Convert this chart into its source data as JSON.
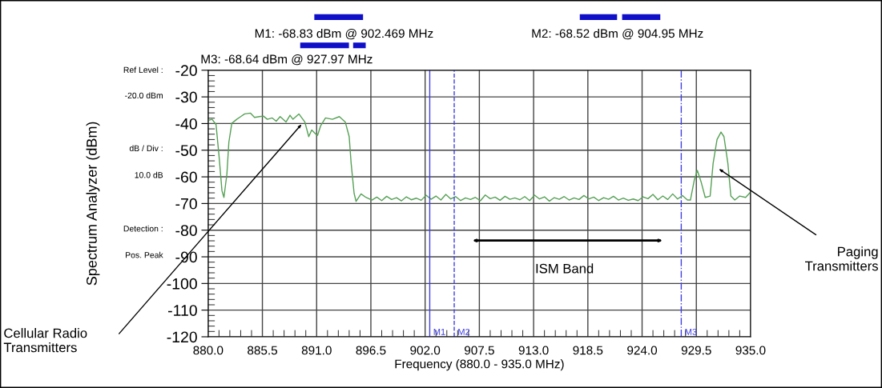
{
  "chart_data": {
    "type": "line",
    "xlabel": "Frequency (880.0 - 935.0 MHz)",
    "ylabel": "Spectrum Analyzer (dBm)",
    "annotations": [
      "M1: -68.83 dBm @ 902.469 MHz",
      "M2: -68.52 dBm @ 904.95 MHz",
      "M3: -68.64 dBm @ 927.97 MHz",
      "Ref Level :",
      "-20.0 dBm",
      "dB / Div :",
      "10.0 dB",
      "Detection :",
      "Pos. Peak",
      "Cellular Radio\nTransmitters",
      "Paging\nTransmitters",
      "ISM Band"
    ],
    "ref_lines": [
      {
        "axis": "x",
        "value": 902.469,
        "label": "M1",
        "color": "#4040e0",
        "line_style": "solid"
      },
      {
        "axis": "x",
        "value": 904.95,
        "label": "M2",
        "color": "#4040e0",
        "line_style": "dashed"
      },
      {
        "axis": "x",
        "value": 927.97,
        "label": "M3",
        "color": "#4040e0",
        "line_style": "dashdot"
      }
    ],
    "series": [
      {
        "color": "#55a055",
        "x": [
          880.1,
          880.4,
          880.8,
          881.1,
          881.4,
          881.6,
          881.9,
          882.1,
          882.4,
          882.9,
          883.3,
          883.7,
          884.3,
          884.7,
          885.2,
          885.6,
          886.0,
          886.5,
          886.9,
          887.3,
          887.9,
          888.3,
          888.6,
          889.2,
          889.8,
          890.2,
          890.5,
          890.9,
          891.1,
          891.4,
          891.9,
          892.6,
          893.3,
          893.9,
          894.3,
          894.5,
          894.8,
          895.0,
          895.5,
          896.0,
          896.6,
          897.1,
          897.6,
          898.1,
          898.6,
          899.1,
          899.6,
          900.1,
          900.6,
          901.1,
          901.6,
          902.1,
          902.6,
          903.1,
          903.6,
          904.1,
          904.6,
          905.1,
          905.6,
          906.1,
          906.6,
          907.1,
          907.6,
          908.1,
          908.6,
          909.1,
          909.6,
          910.1,
          910.6,
          911.1,
          911.6,
          912.1,
          912.6,
          913.1,
          913.6,
          914.1,
          914.6,
          915.1,
          915.6,
          916.1,
          916.6,
          917.1,
          917.6,
          918.1,
          918.6,
          919.1,
          919.6,
          920.1,
          920.6,
          921.1,
          921.6,
          922.1,
          922.6,
          923.1,
          923.6,
          924.1,
          924.6,
          925.1,
          925.6,
          926.1,
          926.6,
          927.1,
          927.6,
          928.1,
          928.6,
          928.9,
          929.3,
          929.6,
          930.0,
          930.4,
          930.9,
          931.2,
          931.6,
          932.0,
          932.3,
          932.7,
          933.0,
          933.4,
          933.9,
          934.5,
          935.0
        ],
        "values": [
          -38.7,
          -38.4,
          -40.4,
          -52,
          -65.2,
          -67.7,
          -59,
          -47,
          -39.9,
          -38.4,
          -37.4,
          -36.4,
          -36.1,
          -37.7,
          -37.4,
          -37.2,
          -38.4,
          -37.9,
          -39.1,
          -37.4,
          -39.4,
          -36.9,
          -38.4,
          -36.4,
          -39.4,
          -44.9,
          -42.4,
          -43.9,
          -44.4,
          -40.9,
          -37.9,
          -38.4,
          -37.4,
          -39.4,
          -44.9,
          -55,
          -66.2,
          -69.2,
          -66.4,
          -67.7,
          -68.7,
          -67.6,
          -68.9,
          -67.3,
          -68.5,
          -67.8,
          -69.0,
          -67.5,
          -68.6,
          -68.0,
          -68.8,
          -66.9,
          -68.4,
          -67.2,
          -68.7,
          -66.6,
          -68.3,
          -67.4,
          -68.9,
          -67.9,
          -68.5,
          -67.7,
          -69.0,
          -66.8,
          -68.2,
          -67.6,
          -68.8,
          -67.3,
          -68.4,
          -67.9,
          -68.6,
          -67.4,
          -68.9,
          -66.9,
          -68.3,
          -67.5,
          -69.1,
          -67.8,
          -68.4,
          -67.4,
          -68.7,
          -67.9,
          -68.5,
          -67.0,
          -68.3,
          -67.6,
          -68.9,
          -67.8,
          -68.4,
          -67.3,
          -68.7,
          -68.0,
          -68.8,
          -68.3,
          -68.9,
          -67.5,
          -68.2,
          -66.6,
          -68.6,
          -67.2,
          -68.5,
          -66.4,
          -68.3,
          -67.0,
          -68.7,
          -68.7,
          -61.1,
          -57.6,
          -62.1,
          -67.7,
          -67.2,
          -55,
          -46,
          -43.2,
          -44.9,
          -55,
          -67.2,
          -68.7,
          -67.2,
          -67.7,
          -65.7
        ]
      }
    ],
    "xlim": [
      880,
      935
    ],
    "xticks": [
      {
        "value": 880,
        "label": "880.0"
      },
      885.5,
      {
        "value": 891,
        "label": "891.0"
      },
      896.5,
      {
        "value": 902,
        "label": "902.0"
      },
      907.5,
      {
        "value": 913,
        "label": "913.0"
      },
      918.5,
      {
        "value": 924,
        "label": "924.0"
      },
      929.5,
      {
        "value": 935,
        "label": "935.0"
      }
    ],
    "ylim": [
      -120,
      -20
    ],
    "yticks": [
      -120,
      -110,
      -100,
      -90,
      -80,
      -70,
      -60,
      -50,
      -40,
      -30,
      -20
    ],
    "grid": true
  }
}
